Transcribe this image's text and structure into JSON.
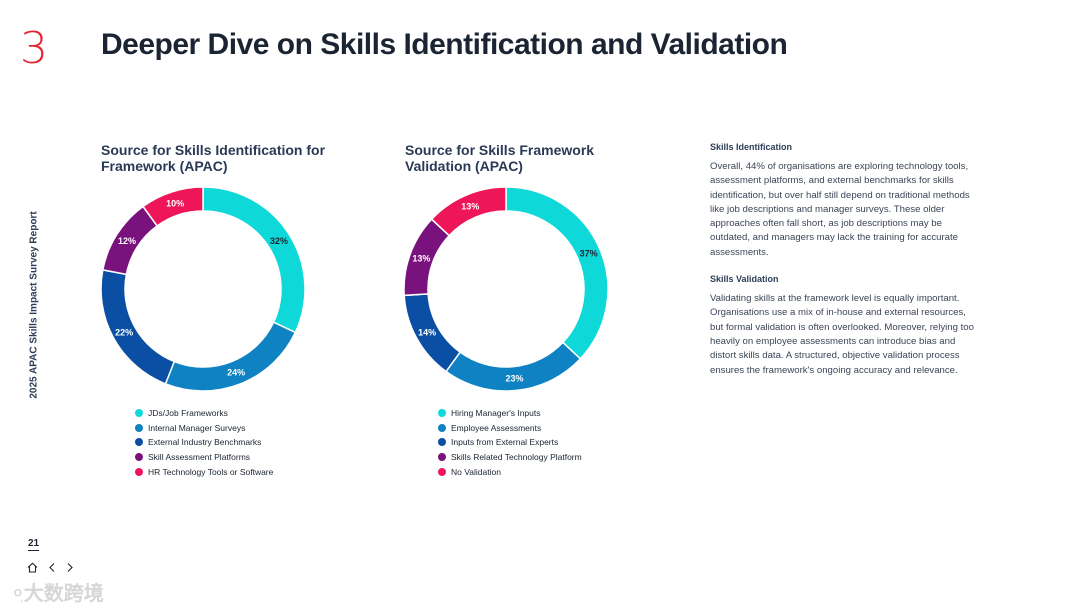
{
  "header": {
    "section_number": "3",
    "title": "Deeper Dive on Skills Identification and Validation",
    "side_label": "2025 APAC Skills Impact Survey Report"
  },
  "chart_data": [
    {
      "type": "pie",
      "donut": true,
      "title": "Source for Skills Identification for Framework (APAC)",
      "series": [
        {
          "name": "JDs/Job Frameworks",
          "value": 32,
          "label": "32%",
          "color": "#0fd8d8"
        },
        {
          "name": "Internal Manager Surveys",
          "value": 24,
          "label": "24%",
          "color": "#0e82c2"
        },
        {
          "name": "External Industry Benchmarks",
          "value": 22,
          "label": "22%",
          "color": "#0a4fa3"
        },
        {
          "name": "Skill Assessment Platforms",
          "value": 12,
          "label": "12%",
          "color": "#7a127e"
        },
        {
          "name": "HR Technology Tools or Software",
          "value": 10,
          "label": "10%",
          "color": "#ee1558"
        }
      ]
    },
    {
      "type": "pie",
      "donut": true,
      "title": "Source for Skills Framework Validation (APAC)",
      "series": [
        {
          "name": "Hiring Manager's Inputs",
          "value": 37,
          "label": "37%",
          "color": "#0fd8d8"
        },
        {
          "name": "Employee Assessments",
          "value": 23,
          "label": "23%",
          "color": "#0e82c2"
        },
        {
          "name": "Inputs from External Experts",
          "value": 14,
          "label": "14%",
          "color": "#0a4fa3"
        },
        {
          "name": "Skills Related Technology Platform",
          "value": 13,
          "label": "13%",
          "color": "#7a127e"
        },
        {
          "name": "No Validation",
          "value": 13,
          "label": "13%",
          "color": "#ee1558"
        }
      ]
    }
  ],
  "text": {
    "identification": {
      "heading": "Skills Identification",
      "body": "Overall, 44% of organisations are exploring technology tools, assessment platforms, and external benchmarks for skills identification, but over half still depend on traditional methods like job descriptions and manager surveys. These older approaches often fall short, as job descriptions may be outdated, and managers may lack the training for accurate assessments."
    },
    "validation": {
      "heading": "Skills Validation",
      "body": "Validating skills at the framework level is equally important. Organisations use a mix of in-house and external resources, but formal validation is often overlooked. Moreover, relying too heavily on employee assessments can introduce bias and distort skills data. A structured, objective validation process ensures the framework's ongoing accuracy and relevance."
    }
  },
  "footer": {
    "page_number": "21",
    "home_icon": "home-icon",
    "prev_icon": "chevron-left-icon",
    "next_icon": "chevron-right-icon",
    "watermark": "大数跨境"
  }
}
